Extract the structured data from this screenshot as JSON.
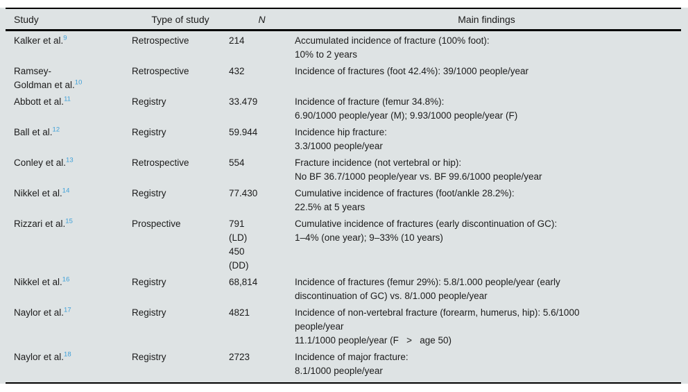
{
  "colors": {
    "table_background": "#dee3e4",
    "rule_color": "#000000",
    "reference_link_color": "#3fa0d8",
    "text_color": "#1b1b1b"
  },
  "table": {
    "columns": [
      "Study",
      "Type of study",
      "N",
      "Main findings"
    ],
    "rows": [
      {
        "study": "Kalker et al.",
        "ref": "9",
        "type": "Retrospective",
        "n": "214",
        "findings": "Accumulated incidence of fracture (100% foot):\n10% to 2 years"
      },
      {
        "study": "Ramsey-\nGoldman et al.",
        "ref": "10",
        "type": "Retrospective",
        "n": "432",
        "findings": "Incidence of fractures (foot 42.4%): 39/1000 people/year"
      },
      {
        "study": "Abbott et al.",
        "ref": "11",
        "type": "Registry",
        "n": "33.479",
        "findings": "Incidence of fracture (femur 34.8%):\n6.90/1000 people/year (M); 9.93/1000 people/year (F)"
      },
      {
        "study": "Ball et al.",
        "ref": "12",
        "type": "Registry",
        "n": "59.944",
        "findings": "Incidence hip fracture:\n3.3/1000 people/year"
      },
      {
        "study": "Conley et al.",
        "ref": "13",
        "type": "Retrospective",
        "n": "554",
        "findings": "Fracture incidence (not vertebral or hip):\nNo BF 36.7/1000 people/year vs. BF 99.6/1000 people/year"
      },
      {
        "study": "Nikkel et al.",
        "ref": "14",
        "type": "Registry",
        "n": "77.430",
        "findings": "Cumulative incidence of fractures (foot/ankle 28.2%):\n22.5% at 5 years"
      },
      {
        "study": "Rizzari et al.",
        "ref": "15",
        "type": "Prospective",
        "n": "791\n(LD)\n450\n(DD)",
        "findings": "Cumulative incidence of fractures (early discontinuation of GC):\n1–4% (one year); 9–33% (10 years)"
      },
      {
        "study": "Nikkel et al.",
        "ref": "16",
        "type": "Registry",
        "n": "68,814",
        "findings": "Incidence of fractures (femur 29%): 5.8/1.000 people/year (early\ndiscontinuation of GC) vs. 8/1.000 people/year"
      },
      {
        "study": "Naylor et al.",
        "ref": "17",
        "type": "Registry",
        "n": "4821",
        "findings": "Incidence of non-vertebral fracture (forearm, humerus, hip): 5.6/1000\npeople/year\n11.1/1000 people/year (F   >   age 50)"
      },
      {
        "study": "Naylor et al.",
        "ref": "18",
        "type": "Registry",
        "n": "2723",
        "findings": "Incidence of major fracture:\n8.1/1000 people/year"
      }
    ]
  }
}
